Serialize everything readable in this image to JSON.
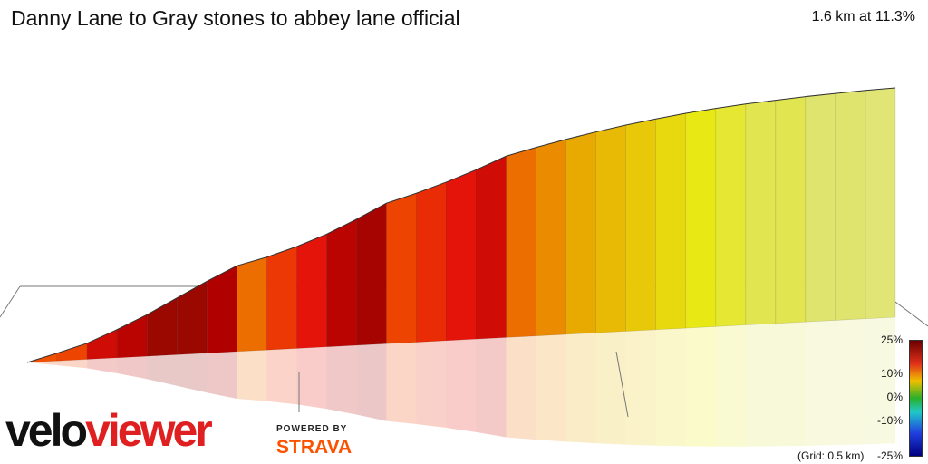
{
  "header": {
    "title": "Danny Lane to Gray stones to abbey lane official",
    "stats": "1.6 km at 11.3%"
  },
  "legend": {
    "labels": [
      "25%",
      "10%",
      "0%",
      "-10%",
      "-25%"
    ],
    "grid_note": "(Grid: 0.5 km)"
  },
  "branding": {
    "logo_part1": "velo",
    "logo_part2": "viewer",
    "powered_by": "POWERED BY",
    "strava": "STRAVA"
  },
  "colors": {
    "gradient_low": "#e8e8a0",
    "gradient_high": "#7a1a00",
    "strava_orange": "#fc5200"
  },
  "chart_data": {
    "type": "area",
    "title": "Danny Lane to Gray stones to abbey lane official",
    "xlabel": "",
    "ylabel": "",
    "grid": "0.5 km",
    "x_unit": "km",
    "distance_km": 1.6,
    "average_gradient_pct": 11.3,
    "segment_gradients_pct": [
      15,
      16,
      22,
      24,
      27,
      27,
      25,
      14,
      17,
      20,
      24,
      26,
      16,
      18,
      20,
      22,
      14,
      13,
      12,
      11,
      10,
      9,
      8,
      7,
      6,
      6,
      5,
      5,
      4
    ],
    "color_scale": {
      "min_pct": -25,
      "max_pct": 25
    }
  }
}
